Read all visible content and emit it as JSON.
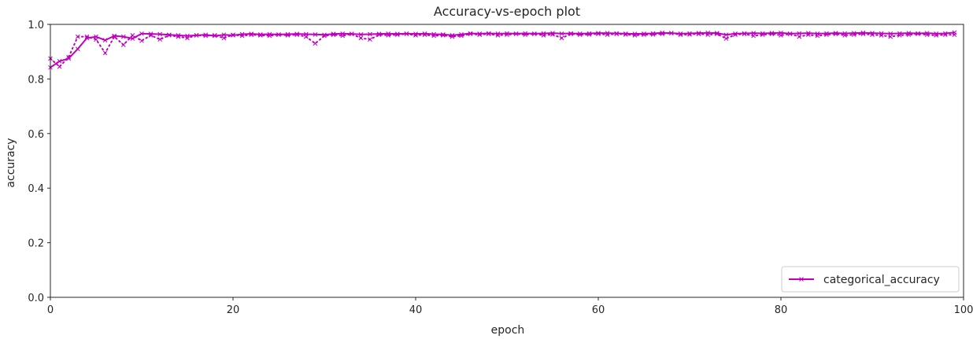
{
  "chart_data": {
    "type": "line",
    "title": "Accuracy-vs-epoch plot",
    "xlabel": "epoch",
    "ylabel": "accuracy",
    "xlim": [
      0,
      100
    ],
    "ylim": [
      0.0,
      1.0
    ],
    "xticks": [
      0,
      20,
      40,
      60,
      80,
      100
    ],
    "yticks": [
      0.0,
      0.2,
      0.4,
      0.6,
      0.8,
      1.0
    ],
    "xtick_labels": [
      "0",
      "20",
      "40",
      "60",
      "80",
      "100"
    ],
    "ytick_labels": [
      "0.0",
      "0.2",
      "0.4",
      "0.6",
      "0.8",
      "1.0"
    ],
    "grid": false,
    "legend_position": "lower-right",
    "color": "#c000c0",
    "series": [
      {
        "name": "categorical_accuracy",
        "style": "solid-line-with-x-markers",
        "x": [
          0,
          1,
          2,
          3,
          4,
          5,
          6,
          7,
          8,
          9,
          10,
          11,
          12,
          13,
          14,
          15,
          16,
          17,
          18,
          19,
          20,
          21,
          22,
          23,
          24,
          25,
          26,
          27,
          28,
          29,
          30,
          31,
          32,
          33,
          34,
          35,
          36,
          37,
          38,
          39,
          40,
          41,
          42,
          43,
          44,
          45,
          46,
          47,
          48,
          49,
          50,
          51,
          52,
          53,
          54,
          55,
          56,
          57,
          58,
          59,
          60,
          61,
          62,
          63,
          64,
          65,
          66,
          67,
          68,
          69,
          70,
          71,
          72,
          73,
          74,
          75,
          76,
          77,
          78,
          79,
          80,
          81,
          82,
          83,
          84,
          85,
          86,
          87,
          88,
          89,
          90,
          91,
          92,
          93,
          94,
          95,
          96,
          97,
          98,
          99
        ],
        "values": [
          0.842,
          0.865,
          0.875,
          0.91,
          0.95,
          0.955,
          0.942,
          0.958,
          0.955,
          0.948,
          0.966,
          0.965,
          0.964,
          0.962,
          0.96,
          0.958,
          0.96,
          0.962,
          0.958,
          0.962,
          0.96,
          0.964,
          0.965,
          0.963,
          0.964,
          0.963,
          0.964,
          0.965,
          0.964,
          0.963,
          0.962,
          0.965,
          0.966,
          0.965,
          0.963,
          0.964,
          0.965,
          0.966,
          0.965,
          0.966,
          0.965,
          0.966,
          0.964,
          0.963,
          0.96,
          0.963,
          0.967,
          0.966,
          0.967,
          0.966,
          0.967,
          0.966,
          0.967,
          0.966,
          0.967,
          0.968,
          0.966,
          0.967,
          0.966,
          0.967,
          0.968,
          0.968,
          0.967,
          0.966,
          0.965,
          0.966,
          0.967,
          0.969,
          0.968,
          0.966,
          0.967,
          0.968,
          0.969,
          0.968,
          0.962,
          0.966,
          0.967,
          0.968,
          0.967,
          0.968,
          0.969,
          0.966,
          0.967,
          0.968,
          0.966,
          0.967,
          0.968,
          0.967,
          0.968,
          0.969,
          0.968,
          0.967,
          0.966,
          0.967,
          0.968,
          0.967,
          0.968,
          0.966,
          0.967,
          0.97
        ]
      },
      {
        "name": "",
        "style": "dotted-line-with-x-markers",
        "x": [
          0,
          1,
          2,
          3,
          4,
          5,
          6,
          7,
          8,
          9,
          10,
          11,
          12,
          13,
          14,
          15,
          16,
          17,
          18,
          19,
          20,
          21,
          22,
          23,
          24,
          25,
          26,
          27,
          28,
          29,
          30,
          31,
          32,
          33,
          34,
          35,
          36,
          37,
          38,
          39,
          40,
          41,
          42,
          43,
          44,
          45,
          46,
          47,
          48,
          49,
          50,
          51,
          52,
          53,
          54,
          55,
          56,
          57,
          58,
          59,
          60,
          61,
          62,
          63,
          64,
          65,
          66,
          67,
          68,
          69,
          70,
          71,
          72,
          73,
          74,
          75,
          76,
          77,
          78,
          79,
          80,
          81,
          82,
          83,
          84,
          85,
          86,
          87,
          88,
          89,
          90,
          91,
          92,
          93,
          94,
          95,
          96,
          97,
          98,
          99
        ],
        "values": [
          0.875,
          0.845,
          0.88,
          0.955,
          0.955,
          0.945,
          0.895,
          0.955,
          0.925,
          0.96,
          0.94,
          0.96,
          0.945,
          0.96,
          0.955,
          0.95,
          0.96,
          0.958,
          0.96,
          0.95,
          0.962,
          0.958,
          0.962,
          0.96,
          0.958,
          0.962,
          0.96,
          0.962,
          0.955,
          0.93,
          0.958,
          0.962,
          0.958,
          0.965,
          0.95,
          0.945,
          0.962,
          0.96,
          0.962,
          0.965,
          0.96,
          0.962,
          0.958,
          0.96,
          0.955,
          0.958,
          0.965,
          0.962,
          0.965,
          0.96,
          0.962,
          0.965,
          0.962,
          0.965,
          0.96,
          0.963,
          0.95,
          0.965,
          0.962,
          0.963,
          0.965,
          0.962,
          0.965,
          0.963,
          0.96,
          0.962,
          0.963,
          0.965,
          0.968,
          0.962,
          0.963,
          0.965,
          0.962,
          0.965,
          0.948,
          0.962,
          0.965,
          0.958,
          0.962,
          0.965,
          0.96,
          0.965,
          0.955,
          0.962,
          0.958,
          0.962,
          0.965,
          0.96,
          0.962,
          0.965,
          0.962,
          0.96,
          0.955,
          0.96,
          0.962,
          0.965,
          0.962,
          0.96,
          0.962,
          0.962
        ]
      }
    ]
  }
}
